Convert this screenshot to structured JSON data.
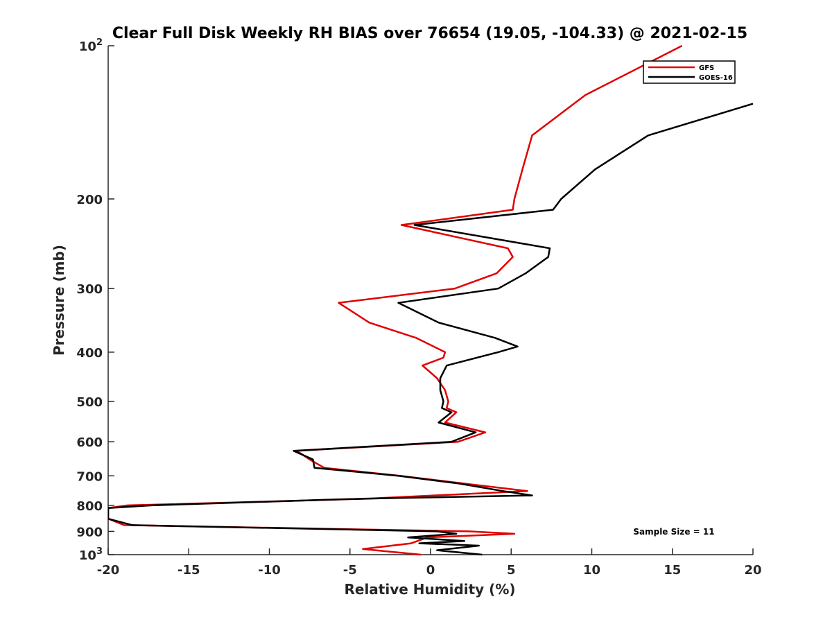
{
  "chart_data": {
    "type": "line",
    "title": "Clear Full Disk Weekly RH BIAS over 76654 (19.05, -104.33) @ 2021-02-15",
    "xlabel": "Relative Humidity (%)",
    "ylabel": "Pressure (mb)",
    "xlim": [
      -20,
      20
    ],
    "ylim": [
      100,
      1000
    ],
    "yscale": "log",
    "y_reversed": true,
    "xticks": [
      -20,
      -15,
      -10,
      -5,
      0,
      5,
      10,
      15,
      20
    ],
    "xtick_labels": [
      "-20",
      "-15",
      "-10",
      "-5",
      "0",
      "5",
      "10",
      "15",
      "20"
    ],
    "yticks": [
      {
        "value": 100,
        "base": "10",
        "exp": "2"
      },
      {
        "value": 200,
        "label": "200"
      },
      {
        "value": 300,
        "label": "300"
      },
      {
        "value": 400,
        "label": "400"
      },
      {
        "value": 500,
        "label": "500"
      },
      {
        "value": 600,
        "label": "600"
      },
      {
        "value": 700,
        "label": "700"
      },
      {
        "value": 800,
        "label": "800"
      },
      {
        "value": 900,
        "label": "900"
      },
      {
        "value": 1000,
        "base": "10",
        "exp": "3"
      }
    ],
    "legend": {
      "position": "top-right",
      "entries": [
        "GFS",
        "GOES-16"
      ]
    },
    "annotation": "Sample Size = 11",
    "series": [
      {
        "name": "GFS",
        "color": "#e00000",
        "points": [
          [
            15.6,
            100
          ],
          [
            9.6,
            125
          ],
          [
            6.3,
            150
          ],
          [
            5.7,
            175
          ],
          [
            5.2,
            200
          ],
          [
            5.1,
            210
          ],
          [
            -1.8,
            225
          ],
          [
            4.8,
            250
          ],
          [
            5.1,
            260
          ],
          [
            4.1,
            280
          ],
          [
            1.5,
            300
          ],
          [
            -5.7,
            320
          ],
          [
            -3.8,
            350
          ],
          [
            -0.9,
            375
          ],
          [
            0.9,
            400
          ],
          [
            0.8,
            410
          ],
          [
            -0.5,
            425
          ],
          [
            0.4,
            450
          ],
          [
            0.9,
            475
          ],
          [
            1.1,
            500
          ],
          [
            1.0,
            515
          ],
          [
            1.6,
            525
          ],
          [
            0.9,
            550
          ],
          [
            3.4,
            575
          ],
          [
            1.7,
            600
          ],
          [
            -8.3,
            625
          ],
          [
            -7.5,
            650
          ],
          [
            -6.6,
            675
          ],
          [
            -1.9,
            700
          ],
          [
            2.1,
            725
          ],
          [
            6.0,
            750
          ],
          [
            -3.5,
            775
          ],
          [
            -6.1,
            780
          ],
          [
            -18.8,
            800
          ],
          [
            -20.0,
            810
          ],
          [
            -20.0,
            850
          ],
          [
            -19.0,
            875
          ],
          [
            2.4,
            900
          ],
          [
            5.2,
            910
          ],
          [
            -0.2,
            925
          ],
          [
            -1.2,
            950
          ],
          [
            -4.2,
            975
          ],
          [
            -0.6,
            1000
          ]
        ]
      },
      {
        "name": "GOES-16",
        "color": "#000000",
        "points": [
          [
            20.0,
            130
          ],
          [
            13.5,
            150
          ],
          [
            10.2,
            175
          ],
          [
            8.1,
            200
          ],
          [
            7.6,
            210
          ],
          [
            -1.0,
            225
          ],
          [
            7.4,
            250
          ],
          [
            7.3,
            260
          ],
          [
            5.9,
            280
          ],
          [
            4.2,
            300
          ],
          [
            -2.0,
            320
          ],
          [
            0.5,
            350
          ],
          [
            4.0,
            375
          ],
          [
            5.4,
            390
          ],
          [
            4.2,
            400
          ],
          [
            1.0,
            425
          ],
          [
            0.6,
            450
          ],
          [
            0.6,
            475
          ],
          [
            0.8,
            500
          ],
          [
            0.7,
            515
          ],
          [
            1.3,
            525
          ],
          [
            0.5,
            550
          ],
          [
            2.8,
            575
          ],
          [
            1.3,
            600
          ],
          [
            -8.5,
            625
          ],
          [
            -7.3,
            650
          ],
          [
            -7.2,
            675
          ],
          [
            -2.0,
            700
          ],
          [
            1.8,
            725
          ],
          [
            4.5,
            750
          ],
          [
            6.3,
            765
          ],
          [
            -3.1,
            775
          ],
          [
            -6.4,
            780
          ],
          [
            -17.3,
            800
          ],
          [
            -20.0,
            810
          ],
          [
            -20.0,
            850
          ],
          [
            -18.5,
            875
          ],
          [
            0.4,
            900
          ],
          [
            1.6,
            910
          ],
          [
            -1.4,
            925
          ],
          [
            2.1,
            940
          ],
          [
            -0.7,
            950
          ],
          [
            3.0,
            960
          ],
          [
            0.4,
            980
          ],
          [
            3.2,
            1000
          ]
        ]
      }
    ]
  }
}
